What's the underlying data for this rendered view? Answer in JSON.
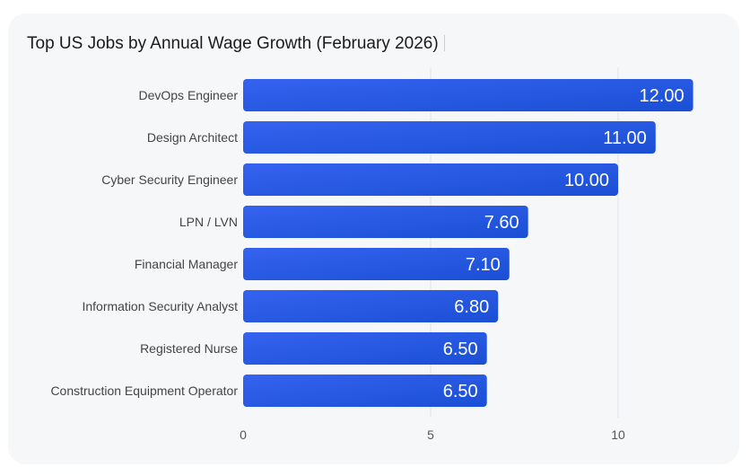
{
  "chart_data": {
    "type": "bar",
    "orientation": "horizontal",
    "title": "Top US Jobs by Annual Wage Growth (February 2026)",
    "categories": [
      "DevOps Engineer",
      "Design Architect",
      "Cyber Security Engineer",
      "LPN / LVN",
      "Financial Manager",
      "Information Security Analyst",
      "Registered Nurse",
      "Construction Equipment Operator"
    ],
    "values": [
      12.0,
      11.0,
      10.0,
      7.6,
      7.1,
      6.8,
      6.5,
      6.5
    ],
    "data_labels": [
      "12.00",
      "11.00",
      "10.00",
      "7.60",
      "7.10",
      "6.80",
      "6.50",
      "6.50"
    ],
    "xticks": [
      "0",
      "5",
      "10"
    ],
    "xlim": [
      0,
      13.1
    ],
    "grid": true,
    "colors": {
      "bar_start": "#3563f0",
      "bar_end": "#1a4fd4",
      "grid": "#e1e3e8",
      "label": "#444444",
      "tick": "#555555"
    }
  }
}
